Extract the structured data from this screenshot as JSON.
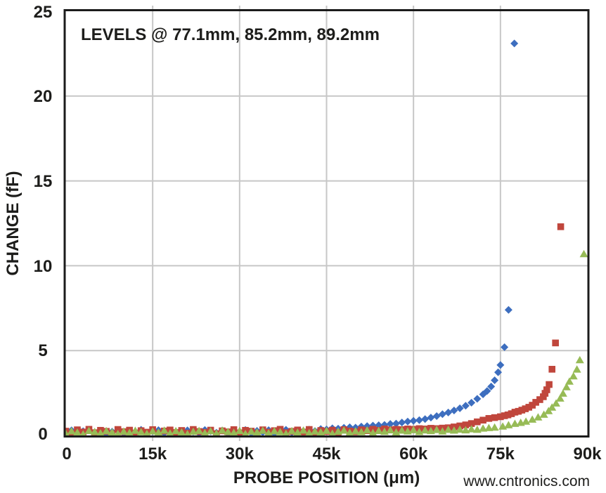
{
  "watermark": {
    "text": "www.cntronics.com",
    "color": "#b4d8a4"
  },
  "chart_data": {
    "type": "scatter",
    "annotation": "LEVELS @ 77.1mm, 85.2mm, 89.2mm",
    "xlabel": "PROBE POSITION (μm)",
    "ylabel": "CHANGE (fF)",
    "xlim": [
      0,
      90000
    ],
    "ylim": [
      0,
      25
    ],
    "grid": true,
    "legend": "none",
    "x_tick_values": [
      0,
      15000,
      30000,
      45000,
      60000,
      75000,
      90000
    ],
    "x_tick_labels": [
      "0",
      "15k",
      "30k",
      "45k",
      "60k",
      "75k",
      "90k"
    ],
    "y_tick_values": [
      0,
      5,
      10,
      15,
      20,
      25
    ],
    "y_tick_labels_top_down": [
      "25",
      "20",
      "15",
      "10",
      "5",
      "0"
    ],
    "series": [
      {
        "name": "level-77.1mm",
        "level": "77.1mm",
        "marker": "diamond",
        "color": "#3d6ebf",
        "baseline": {
          "x_start": 0,
          "x_step": 1000,
          "y": [
            0.18,
            0.3,
            0.1,
            0.25,
            0.33,
            0.15,
            0.28,
            0.08,
            0.22,
            0.31,
            0.12,
            0.27,
            0.2,
            0.33,
            0.09,
            0.24,
            0.31,
            0.14,
            0.28,
            0.19,
            0.1,
            0.3,
            0.22,
            0.13,
            0.32,
            0.25,
            0.16,
            0.29,
            0.11,
            0.26,
            0.2,
            0.32,
            0.14,
            0.27,
            0.18,
            0.31,
            0.12,
            0.24,
            0.33,
            0.17,
            0.28,
            0.21,
            0.34,
            0.26,
            0.38,
            0.35,
            0.42,
            0.4,
            0.45,
            0.48,
            0.46,
            0.52,
            0.55,
            0.58,
            0.6
          ]
        },
        "points": [
          [
            55000,
            0.62
          ],
          [
            56000,
            0.68
          ],
          [
            57000,
            0.7
          ],
          [
            58000,
            0.76
          ],
          [
            59000,
            0.82
          ],
          [
            60000,
            0.86
          ],
          [
            61000,
            0.9
          ],
          [
            62000,
            0.96
          ],
          [
            63000,
            1.05
          ],
          [
            64000,
            1.14
          ],
          [
            65000,
            1.25
          ],
          [
            66000,
            1.35
          ],
          [
            67000,
            1.47
          ],
          [
            68000,
            1.6
          ],
          [
            69000,
            1.75
          ],
          [
            70000,
            1.93
          ],
          [
            71000,
            2.16
          ],
          [
            72000,
            2.42
          ],
          [
            72700,
            2.62
          ],
          [
            73400,
            2.88
          ],
          [
            74000,
            3.25
          ],
          [
            74600,
            3.72
          ],
          [
            75000,
            4.15
          ],
          [
            75700,
            5.2
          ],
          [
            76400,
            7.4
          ],
          [
            77400,
            23.1
          ]
        ]
      },
      {
        "name": "level-85.2mm",
        "level": "85.2mm",
        "marker": "square",
        "color": "#c0463c",
        "baseline": {
          "x_start": 0,
          "x_step": 1000,
          "y": [
            0.25,
            0.12,
            0.33,
            0.2,
            0.36,
            0.16,
            0.3,
            0.24,
            0.1,
            0.35,
            0.22,
            0.31,
            0.14,
            0.28,
            0.19,
            0.34,
            0.11,
            0.26,
            0.32,
            0.17,
            0.29,
            0.13,
            0.35,
            0.23,
            0.18,
            0.31,
            0.1,
            0.27,
            0.21,
            0.34,
            0.15,
            0.3,
            0.25,
            0.12,
            0.33,
            0.19,
            0.28,
            0.36,
            0.16,
            0.24,
            0.32,
            0.2,
            0.35,
            0.14,
            0.29,
            0.23,
            0.31,
            0.18,
            0.34,
            0.26,
            0.21,
            0.33,
            0.28,
            0.36,
            0.3,
            0.38,
            0.33,
            0.36,
            0.34,
            0.38,
            0.36,
            0.4,
            0.38,
            0.42,
            0.4,
            0.43
          ]
        },
        "points": [
          [
            66000,
            0.45
          ],
          [
            67000,
            0.5
          ],
          [
            68000,
            0.56
          ],
          [
            69000,
            0.62
          ],
          [
            70000,
            0.7
          ],
          [
            71000,
            0.8
          ],
          [
            72000,
            0.9
          ],
          [
            73000,
            1.0
          ],
          [
            74000,
            1.05
          ],
          [
            75000,
            1.1
          ],
          [
            75700,
            1.16
          ],
          [
            76300,
            1.21
          ],
          [
            76900,
            1.28
          ],
          [
            77500,
            1.37
          ],
          [
            78100,
            1.42
          ],
          [
            78700,
            1.49
          ],
          [
            79300,
            1.57
          ],
          [
            79900,
            1.66
          ],
          [
            80500,
            1.78
          ],
          [
            81100,
            1.95
          ],
          [
            81800,
            2.11
          ],
          [
            82400,
            2.28
          ],
          [
            82700,
            2.48
          ],
          [
            83000,
            2.69
          ],
          [
            83400,
            3.0
          ],
          [
            83900,
            3.9
          ],
          [
            84500,
            5.45
          ],
          [
            85400,
            12.3
          ]
        ]
      },
      {
        "name": "level-89.2mm",
        "level": "89.2mm",
        "marker": "triangle",
        "color": "#97bb56",
        "baseline": {
          "x_start": 0,
          "x_step": 1000,
          "y": [
            0.12,
            0.26,
            0.18,
            0.08,
            0.28,
            0.22,
            0.14,
            0.27,
            0.2,
            0.1,
            0.24,
            0.16,
            0.29,
            0.21,
            0.11,
            0.25,
            0.18,
            0.3,
            0.13,
            0.27,
            0.19,
            0.09,
            0.23,
            0.28,
            0.15,
            0.26,
            0.12,
            0.3,
            0.22,
            0.17,
            0.28,
            0.1,
            0.24,
            0.19,
            0.29,
            0.14,
            0.26,
            0.21,
            0.11,
            0.27,
            0.18,
            0.3,
            0.15,
            0.25,
            0.2,
            0.28,
            0.12,
            0.24,
            0.3,
            0.17,
            0.26,
            0.21,
            0.31,
            0.16,
            0.28,
            0.23,
            0.32,
            0.19,
            0.3,
            0.25,
            0.33,
            0.22,
            0.31,
            0.27,
            0.34,
            0.25,
            0.35,
            0.3,
            0.36,
            0.32,
            0.38,
            0.35,
            0.42,
            0.45
          ]
        },
        "points": [
          [
            74000,
            0.48
          ],
          [
            75400,
            0.54
          ],
          [
            76400,
            0.62
          ],
          [
            77500,
            0.7
          ],
          [
            78500,
            0.76
          ],
          [
            79400,
            0.83
          ],
          [
            80500,
            0.95
          ],
          [
            81500,
            1.08
          ],
          [
            82500,
            1.24
          ],
          [
            83300,
            1.45
          ],
          [
            83900,
            1.66
          ],
          [
            84600,
            1.9
          ],
          [
            85300,
            2.19
          ],
          [
            85800,
            2.48
          ],
          [
            86400,
            2.86
          ],
          [
            86900,
            3.19
          ],
          [
            87600,
            3.5
          ],
          [
            88200,
            3.9
          ],
          [
            88700,
            4.45
          ],
          [
            89400,
            10.7
          ]
        ]
      }
    ]
  }
}
